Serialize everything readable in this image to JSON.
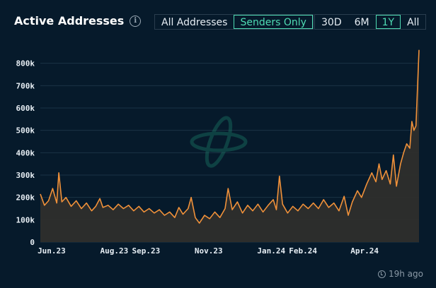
{
  "header": {
    "title": "Active Addresses",
    "info_icon": "info-icon"
  },
  "type_toggle": [
    {
      "label": "All Addresses",
      "active": false
    },
    {
      "label": "Senders Only",
      "active": true
    }
  ],
  "range_toggle": [
    {
      "label": "30D",
      "active": false
    },
    {
      "label": "6M",
      "active": false
    },
    {
      "label": "1Y",
      "active": true
    },
    {
      "label": "All",
      "active": false
    }
  ],
  "footer": {
    "updated_text": "19h ago",
    "icon": "clock-icon"
  },
  "colors": {
    "background": "#061a2b",
    "line": "#f0913a",
    "area": "#2e2e2c",
    "accent": "#4fdcb4",
    "grid": "#1b3345"
  },
  "chart_data": {
    "type": "area",
    "title": "Active Addresses",
    "xlabel": "",
    "ylabel": "",
    "ylim": [
      0,
      900000
    ],
    "yticks": [
      0,
      100000,
      200000,
      300000,
      400000,
      500000,
      600000,
      700000,
      800000
    ],
    "ytick_labels": [
      "0",
      "100k",
      "200k",
      "300k",
      "400k",
      "500k",
      "600k",
      "700k",
      "800k"
    ],
    "xtick_labels": [
      {
        "label": "Jun.23",
        "date": "2023-06-01"
      },
      {
        "label": "Aug.23",
        "date": "2023-08-01"
      },
      {
        "label": "Sep.23",
        "date": "2023-09-01"
      },
      {
        "label": "Nov.23",
        "date": "2023-11-01"
      },
      {
        "label": "Jan.24",
        "date": "2024-01-01"
      },
      {
        "label": "Feb.24",
        "date": "2024-02-01"
      },
      {
        "label": "Apr.24",
        "date": "2024-04-01"
      }
    ],
    "grid": true,
    "x_start": "2023-05-21",
    "x_end": "2024-05-24",
    "series": [
      {
        "points": [
          [
            "2023-05-21",
            215000
          ],
          [
            "2023-05-25",
            165000
          ],
          [
            "2023-05-29",
            185000
          ],
          [
            "2023-06-02",
            240000
          ],
          [
            "2023-06-06",
            175000
          ],
          [
            "2023-06-08",
            310000
          ],
          [
            "2023-06-11",
            180000
          ],
          [
            "2023-06-15",
            200000
          ],
          [
            "2023-06-20",
            160000
          ],
          [
            "2023-06-25",
            185000
          ],
          [
            "2023-06-30",
            150000
          ],
          [
            "2023-07-05",
            175000
          ],
          [
            "2023-07-10",
            140000
          ],
          [
            "2023-07-14",
            160000
          ],
          [
            "2023-07-18",
            195000
          ],
          [
            "2023-07-21",
            155000
          ],
          [
            "2023-07-26",
            165000
          ],
          [
            "2023-07-31",
            145000
          ],
          [
            "2023-08-05",
            170000
          ],
          [
            "2023-08-10",
            150000
          ],
          [
            "2023-08-15",
            165000
          ],
          [
            "2023-08-20",
            140000
          ],
          [
            "2023-08-25",
            160000
          ],
          [
            "2023-08-30",
            135000
          ],
          [
            "2023-09-04",
            150000
          ],
          [
            "2023-09-09",
            130000
          ],
          [
            "2023-09-14",
            145000
          ],
          [
            "2023-09-19",
            120000
          ],
          [
            "2023-09-24",
            135000
          ],
          [
            "2023-09-29",
            110000
          ],
          [
            "2023-10-03",
            155000
          ],
          [
            "2023-10-07",
            125000
          ],
          [
            "2023-10-12",
            150000
          ],
          [
            "2023-10-15",
            200000
          ],
          [
            "2023-10-19",
            110000
          ],
          [
            "2023-10-23",
            85000
          ],
          [
            "2023-10-28",
            120000
          ],
          [
            "2023-11-02",
            105000
          ],
          [
            "2023-11-07",
            135000
          ],
          [
            "2023-11-12",
            110000
          ],
          [
            "2023-11-17",
            150000
          ],
          [
            "2023-11-20",
            240000
          ],
          [
            "2023-11-24",
            145000
          ],
          [
            "2023-11-29",
            180000
          ],
          [
            "2023-12-04",
            130000
          ],
          [
            "2023-12-09",
            165000
          ],
          [
            "2023-12-14",
            140000
          ],
          [
            "2023-12-19",
            170000
          ],
          [
            "2023-12-24",
            135000
          ],
          [
            "2023-12-29",
            165000
          ],
          [
            "2024-01-03",
            190000
          ],
          [
            "2024-01-06",
            145000
          ],
          [
            "2024-01-09",
            295000
          ],
          [
            "2024-01-12",
            170000
          ],
          [
            "2024-01-17",
            130000
          ],
          [
            "2024-01-22",
            160000
          ],
          [
            "2024-01-27",
            140000
          ],
          [
            "2024-02-01",
            170000
          ],
          [
            "2024-02-06",
            150000
          ],
          [
            "2024-02-11",
            175000
          ],
          [
            "2024-02-16",
            150000
          ],
          [
            "2024-02-21",
            190000
          ],
          [
            "2024-02-26",
            155000
          ],
          [
            "2024-03-02",
            175000
          ],
          [
            "2024-03-07",
            140000
          ],
          [
            "2024-03-12",
            205000
          ],
          [
            "2024-03-16",
            120000
          ],
          [
            "2024-03-20",
            180000
          ],
          [
            "2024-03-25",
            230000
          ],
          [
            "2024-03-29",
            200000
          ],
          [
            "2024-04-03",
            260000
          ],
          [
            "2024-04-08",
            310000
          ],
          [
            "2024-04-12",
            270000
          ],
          [
            "2024-04-15",
            350000
          ],
          [
            "2024-04-18",
            280000
          ],
          [
            "2024-04-22",
            320000
          ],
          [
            "2024-04-26",
            260000
          ],
          [
            "2024-04-29",
            390000
          ],
          [
            "2024-05-02",
            250000
          ],
          [
            "2024-05-06",
            350000
          ],
          [
            "2024-05-09",
            400000
          ],
          [
            "2024-05-12",
            440000
          ],
          [
            "2024-05-15",
            420000
          ],
          [
            "2024-05-17",
            540000
          ],
          [
            "2024-05-19",
            500000
          ],
          [
            "2024-05-21",
            520000
          ],
          [
            "2024-05-24",
            860000
          ]
        ]
      }
    ]
  }
}
